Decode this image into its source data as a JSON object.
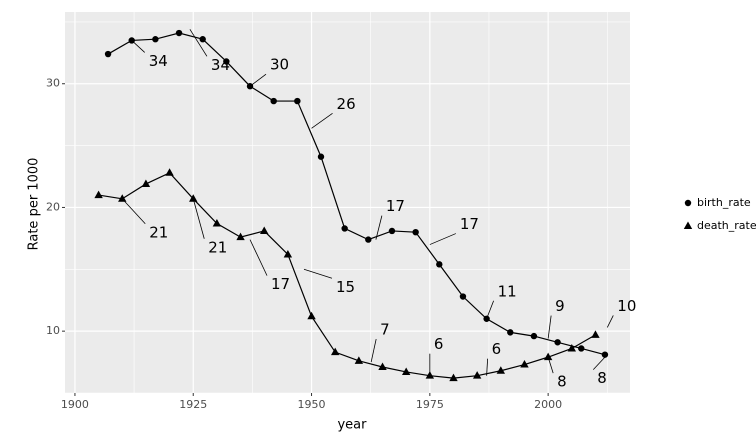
{
  "chart_data": {
    "type": "line",
    "x_label": "year",
    "y_label": "Rate per 1000",
    "xlim": [
      1897.9,
      2017.3
    ],
    "ylim": [
      5,
      35.8
    ],
    "xticks": [
      1900,
      1925,
      1950,
      1975,
      2000
    ],
    "yticks": [
      10,
      20,
      30
    ],
    "grid": true,
    "legend": "right",
    "series": [
      {
        "name": "birth_rate",
        "color": "#000000",
        "shape": "circle",
        "x": [
          1907,
          1912,
          1917,
          1922,
          1927,
          1932,
          1937,
          1942,
          1947,
          1952,
          1957,
          1962,
          1967,
          1972,
          1977,
          1982,
          1987,
          1992,
          1997,
          2002,
          2007,
          2012
        ],
        "values": [
          32.4,
          33.5,
          33.6,
          34.1,
          33.6,
          31.8,
          29.8,
          28.6,
          28.6,
          24.1,
          18.3,
          17.4,
          18.1,
          18.0,
          15.4,
          12.8,
          11.0,
          9.9,
          9.6,
          9.1,
          8.6,
          8.1
        ],
        "annotations": [
          {
            "x": 1912,
            "y": 33.5,
            "label": "34"
          },
          {
            "x": 1924.3,
            "y": 34.4,
            "label": "34"
          },
          {
            "x": 1937,
            "y": 29.8,
            "label": "30"
          },
          {
            "x": 1950,
            "y": 26.4,
            "label": "26"
          },
          {
            "x": 1963.6,
            "y": 17.4,
            "label": "17"
          },
          {
            "x": 1975,
            "y": 17.0,
            "label": "17"
          },
          {
            "x": 1987,
            "y": 11.0,
            "label": "11"
          },
          {
            "x": 2000,
            "y": 9.4,
            "label": "9"
          },
          {
            "x": 2012.5,
            "y": 8.1,
            "label": "8"
          }
        ]
      },
      {
        "name": "death_rate",
        "color": "#000000",
        "shape": "triangle",
        "x": [
          1905,
          1910,
          1915,
          1920,
          1925,
          1930,
          1935,
          1940,
          1945,
          1950,
          1955,
          1960,
          1965,
          1970,
          1975,
          1980,
          1985,
          1990,
          1995,
          2000,
          2005,
          2010
        ],
        "values": [
          21.0,
          20.7,
          21.9,
          22.8,
          20.7,
          18.7,
          17.6,
          18.1,
          16.2,
          11.2,
          8.3,
          7.6,
          7.1,
          6.7,
          6.4,
          6.2,
          6.4,
          6.8,
          7.3,
          7.9,
          8.6,
          9.7
        ],
        "annotations": [
          {
            "x": 1910,
            "y": 20.7,
            "label": "21"
          },
          {
            "x": 1925,
            "y": 20.7,
            "label": "21"
          },
          {
            "x": 1937,
            "y": 17.4,
            "label": "17"
          },
          {
            "x": 1948.4,
            "y": 15.0,
            "label": "15"
          },
          {
            "x": 1962.6,
            "y": 7.5,
            "label": "7"
          },
          {
            "x": 1975,
            "y": 6.4,
            "label": "6"
          },
          {
            "x": 1987,
            "y": 6.4,
            "label": "6"
          },
          {
            "x": 2000,
            "y": 7.9,
            "label": "8"
          },
          {
            "x": 2012.5,
            "y": 10.3,
            "label": "10"
          }
        ]
      }
    ]
  }
}
